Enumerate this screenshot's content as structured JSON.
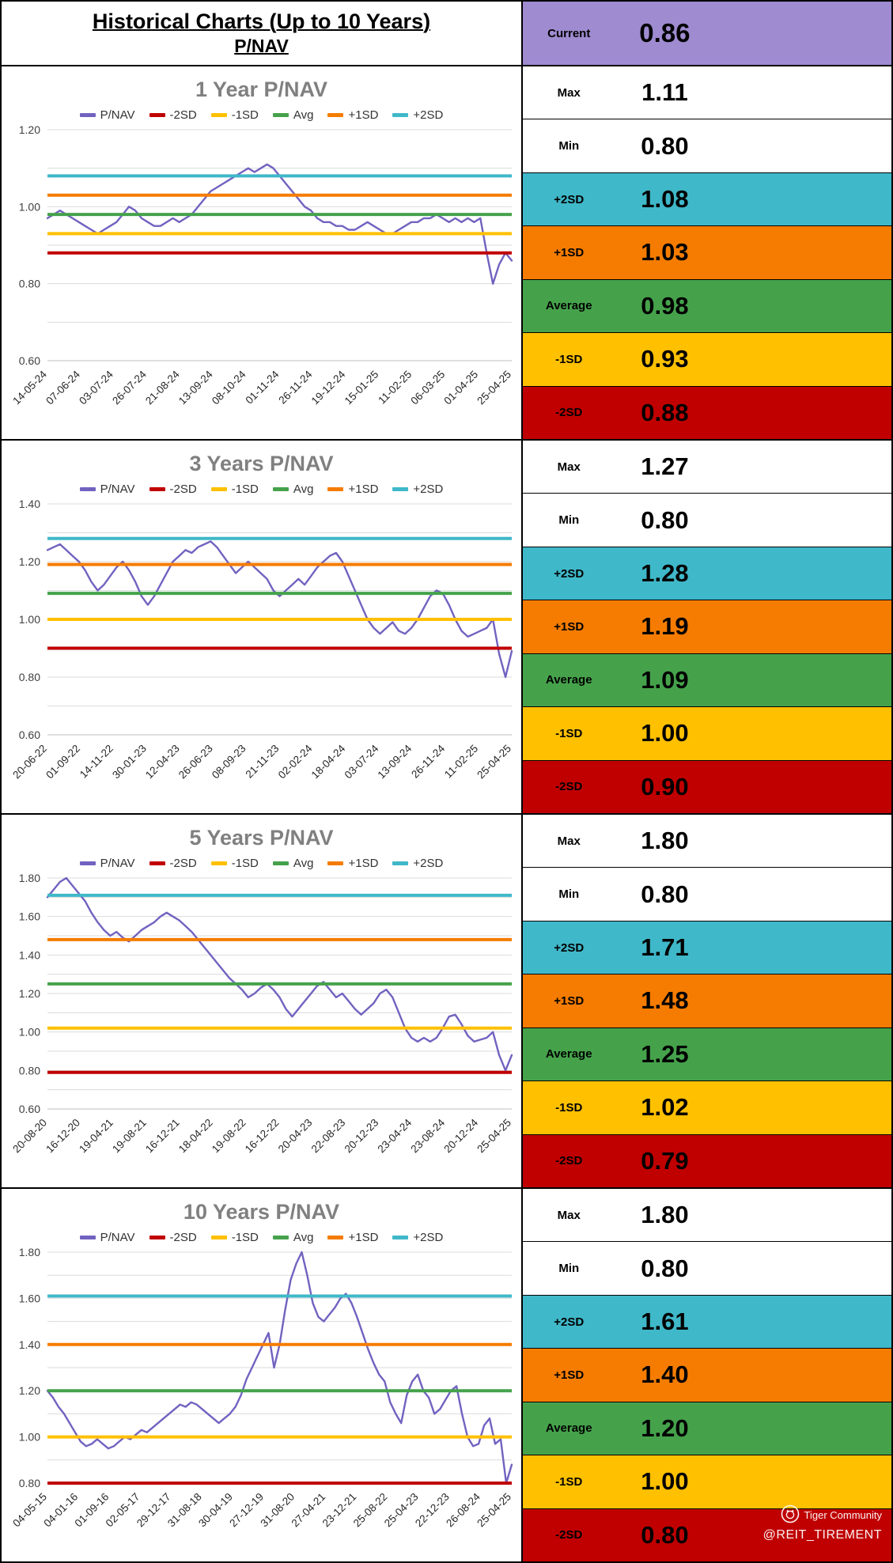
{
  "header": {
    "title_line1": "Historical Charts (Up to 10 Years)",
    "title_line2": "P/NAV",
    "current_label": "Current",
    "current_value": "0.86"
  },
  "colors": {
    "pnav": "#7262C0",
    "sd_minus2": "#C00000",
    "sd_minus1": "#FFC000",
    "avg": "#45A24B",
    "sd_plus1": "#F57C00",
    "sd_plus2": "#3FB8C9",
    "current_bg": "#9E8BD0",
    "grid": "#DBDBDB",
    "axis": "#BFBFBF",
    "title_grey": "#808080"
  },
  "legend": [
    {
      "label": "P/NAV",
      "color_key": "pnav"
    },
    {
      "label": "-2SD",
      "color_key": "sd_minus2"
    },
    {
      "label": "-1SD",
      "color_key": "sd_minus1"
    },
    {
      "label": "Avg",
      "color_key": "avg"
    },
    {
      "label": "+1SD",
      "color_key": "sd_plus1"
    },
    {
      "label": "+2SD",
      "color_key": "sd_plus2"
    }
  ],
  "watermark": {
    "brand": "Tiger Community",
    "handle": "@REIT_TIREMENT"
  },
  "chart_data": [
    {
      "id": "1y",
      "type": "line",
      "title": "1 Year P/NAV",
      "xlabel": "",
      "ylabel": "",
      "x_labels": [
        "14-05-24",
        "07-06-24",
        "03-07-24",
        "26-07-24",
        "21-08-24",
        "13-09-24",
        "08-10-24",
        "01-11-24",
        "26-11-24",
        "19-12-24",
        "15-01-25",
        "11-02-25",
        "06-03-25",
        "01-04-25",
        "25-04-25"
      ],
      "y_ticks": [
        0.6,
        0.8,
        1.0,
        1.2
      ],
      "ylim": [
        0.6,
        1.2
      ],
      "bands": {
        "plus2sd": 1.08,
        "plus1sd": 1.03,
        "avg": 0.98,
        "minus1sd": 0.93,
        "minus2sd": 0.88
      },
      "series": [
        {
          "name": "P/NAV",
          "values": [
            0.97,
            0.98,
            0.99,
            0.98,
            0.97,
            0.96,
            0.95,
            0.94,
            0.93,
            0.94,
            0.95,
            0.96,
            0.98,
            1.0,
            0.99,
            0.97,
            0.96,
            0.95,
            0.95,
            0.96,
            0.97,
            0.96,
            0.97,
            0.98,
            1.0,
            1.02,
            1.04,
            1.05,
            1.06,
            1.07,
            1.08,
            1.09,
            1.1,
            1.09,
            1.1,
            1.11,
            1.1,
            1.08,
            1.06,
            1.04,
            1.02,
            1.0,
            0.99,
            0.97,
            0.96,
            0.96,
            0.95,
            0.95,
            0.94,
            0.94,
            0.95,
            0.96,
            0.95,
            0.94,
            0.93,
            0.93,
            0.94,
            0.95,
            0.96,
            0.96,
            0.97,
            0.97,
            0.98,
            0.97,
            0.96,
            0.97,
            0.96,
            0.97,
            0.96,
            0.97,
            0.88,
            0.8,
            0.85,
            0.88,
            0.86
          ]
        }
      ],
      "stats": [
        {
          "key": "max",
          "label": "Max",
          "value": "1.11",
          "bg": "white"
        },
        {
          "key": "min",
          "label": "Min",
          "value": "0.80",
          "bg": "white"
        },
        {
          "key": "plus2sd",
          "label": "+2SD",
          "value": "1.08",
          "bg": "sd_plus2"
        },
        {
          "key": "plus1sd",
          "label": "+1SD",
          "value": "1.03",
          "bg": "sd_plus1"
        },
        {
          "key": "average",
          "label": "Average",
          "value": "0.98",
          "bg": "avg"
        },
        {
          "key": "minus1sd",
          "label": "-1SD",
          "value": "0.93",
          "bg": "sd_minus1"
        },
        {
          "key": "minus2sd",
          "label": "-2SD",
          "value": "0.88",
          "bg": "sd_minus2"
        }
      ]
    },
    {
      "id": "3y",
      "type": "line",
      "title": "3 Years P/NAV",
      "xlabel": "",
      "ylabel": "",
      "x_labels": [
        "20-06-22",
        "01-09-22",
        "14-11-22",
        "30-01-23",
        "12-04-23",
        "26-06-23",
        "08-09-23",
        "21-11-23",
        "02-02-24",
        "18-04-24",
        "03-07-24",
        "13-09-24",
        "26-11-24",
        "11-02-25",
        "25-04-25"
      ],
      "y_ticks": [
        0.6,
        0.8,
        1.0,
        1.2,
        1.4
      ],
      "ylim": [
        0.6,
        1.4
      ],
      "bands": {
        "plus2sd": 1.28,
        "plus1sd": 1.19,
        "avg": 1.09,
        "minus1sd": 1.0,
        "minus2sd": 0.9
      },
      "series": [
        {
          "name": "P/NAV",
          "values": [
            1.24,
            1.25,
            1.26,
            1.24,
            1.22,
            1.2,
            1.17,
            1.13,
            1.1,
            1.12,
            1.15,
            1.18,
            1.2,
            1.17,
            1.13,
            1.08,
            1.05,
            1.08,
            1.12,
            1.16,
            1.2,
            1.22,
            1.24,
            1.23,
            1.25,
            1.26,
            1.27,
            1.25,
            1.22,
            1.19,
            1.16,
            1.18,
            1.2,
            1.18,
            1.16,
            1.14,
            1.1,
            1.08,
            1.1,
            1.12,
            1.14,
            1.12,
            1.15,
            1.18,
            1.2,
            1.22,
            1.23,
            1.2,
            1.15,
            1.1,
            1.05,
            1.0,
            0.97,
            0.95,
            0.97,
            0.99,
            0.96,
            0.95,
            0.97,
            1.0,
            1.04,
            1.08,
            1.1,
            1.09,
            1.05,
            1.0,
            0.96,
            0.94,
            0.95,
            0.96,
            0.97,
            1.0,
            0.88,
            0.8,
            0.89
          ]
        }
      ],
      "stats": [
        {
          "key": "max",
          "label": "Max",
          "value": "1.27",
          "bg": "white"
        },
        {
          "key": "min",
          "label": "Min",
          "value": "0.80",
          "bg": "white"
        },
        {
          "key": "plus2sd",
          "label": "+2SD",
          "value": "1.28",
          "bg": "sd_plus2"
        },
        {
          "key": "plus1sd",
          "label": "+1SD",
          "value": "1.19",
          "bg": "sd_plus1"
        },
        {
          "key": "average",
          "label": "Average",
          "value": "1.09",
          "bg": "avg"
        },
        {
          "key": "minus1sd",
          "label": "-1SD",
          "value": "1.00",
          "bg": "sd_minus1"
        },
        {
          "key": "minus2sd",
          "label": "-2SD",
          "value": "0.90",
          "bg": "sd_minus2"
        }
      ]
    },
    {
      "id": "5y",
      "type": "line",
      "title": "5 Years P/NAV",
      "xlabel": "",
      "ylabel": "",
      "x_labels": [
        "20-08-20",
        "16-12-20",
        "19-04-21",
        "19-08-21",
        "16-12-21",
        "18-04-22",
        "19-08-22",
        "16-12-22",
        "20-04-23",
        "22-08-23",
        "20-12-23",
        "23-04-24",
        "23-08-24",
        "20-12-24",
        "25-04-25"
      ],
      "y_ticks": [
        0.6,
        0.8,
        1.0,
        1.2,
        1.4,
        1.6,
        1.8
      ],
      "ylim": [
        0.6,
        1.8
      ],
      "bands": {
        "plus2sd": 1.71,
        "plus1sd": 1.48,
        "avg": 1.25,
        "minus1sd": 1.02,
        "minus2sd": 0.79
      },
      "series": [
        {
          "name": "P/NAV",
          "values": [
            1.7,
            1.74,
            1.78,
            1.8,
            1.76,
            1.72,
            1.68,
            1.62,
            1.57,
            1.53,
            1.5,
            1.52,
            1.49,
            1.47,
            1.5,
            1.53,
            1.55,
            1.57,
            1.6,
            1.62,
            1.6,
            1.58,
            1.55,
            1.52,
            1.48,
            1.44,
            1.4,
            1.36,
            1.32,
            1.28,
            1.25,
            1.22,
            1.18,
            1.2,
            1.23,
            1.25,
            1.22,
            1.18,
            1.12,
            1.08,
            1.12,
            1.16,
            1.2,
            1.24,
            1.26,
            1.22,
            1.18,
            1.2,
            1.16,
            1.12,
            1.09,
            1.12,
            1.15,
            1.2,
            1.22,
            1.18,
            1.1,
            1.02,
            0.97,
            0.95,
            0.97,
            0.95,
            0.97,
            1.02,
            1.08,
            1.09,
            1.04,
            0.98,
            0.95,
            0.96,
            0.97,
            1.0,
            0.88,
            0.8,
            0.88
          ]
        }
      ],
      "stats": [
        {
          "key": "max",
          "label": "Max",
          "value": "1.80",
          "bg": "white"
        },
        {
          "key": "min",
          "label": "Min",
          "value": "0.80",
          "bg": "white"
        },
        {
          "key": "plus2sd",
          "label": "+2SD",
          "value": "1.71",
          "bg": "sd_plus2"
        },
        {
          "key": "plus1sd",
          "label": "+1SD",
          "value": "1.48",
          "bg": "sd_plus1"
        },
        {
          "key": "average",
          "label": "Average",
          "value": "1.25",
          "bg": "avg"
        },
        {
          "key": "minus1sd",
          "label": "-1SD",
          "value": "1.02",
          "bg": "sd_minus1"
        },
        {
          "key": "minus2sd",
          "label": "-2SD",
          "value": "0.79",
          "bg": "sd_minus2"
        }
      ]
    },
    {
      "id": "10y",
      "type": "line",
      "title": "10 Years P/NAV",
      "xlabel": "",
      "ylabel": "",
      "x_labels": [
        "04-05-15",
        "04-01-16",
        "01-09-16",
        "02-05-17",
        "29-12-17",
        "31-08-18",
        "30-04-19",
        "27-12-19",
        "31-08-20",
        "27-04-21",
        "23-12-21",
        "25-08-22",
        "25-04-23",
        "22-12-23",
        "26-08-24",
        "25-04-25"
      ],
      "y_ticks": [
        0.8,
        1.0,
        1.2,
        1.4,
        1.6,
        1.8
      ],
      "ylim": [
        0.8,
        1.8
      ],
      "bands": {
        "plus2sd": 1.61,
        "plus1sd": 1.4,
        "avg": 1.2,
        "minus1sd": 1.0,
        "minus2sd": 0.8
      },
      "series": [
        {
          "name": "P/NAV",
          "values": [
            1.2,
            1.17,
            1.13,
            1.1,
            1.06,
            1.02,
            0.98,
            0.96,
            0.97,
            0.99,
            0.97,
            0.95,
            0.96,
            0.98,
            1.0,
            0.99,
            1.01,
            1.03,
            1.02,
            1.04,
            1.06,
            1.08,
            1.1,
            1.12,
            1.14,
            1.13,
            1.15,
            1.14,
            1.12,
            1.1,
            1.08,
            1.06,
            1.08,
            1.1,
            1.13,
            1.18,
            1.25,
            1.3,
            1.35,
            1.4,
            1.45,
            1.3,
            1.4,
            1.55,
            1.68,
            1.75,
            1.8,
            1.7,
            1.58,
            1.52,
            1.5,
            1.53,
            1.56,
            1.6,
            1.62,
            1.58,
            1.52,
            1.45,
            1.38,
            1.32,
            1.27,
            1.24,
            1.15,
            1.1,
            1.06,
            1.18,
            1.24,
            1.27,
            1.2,
            1.17,
            1.1,
            1.12,
            1.16,
            1.2,
            1.22,
            1.1,
            1.0,
            0.96,
            0.97,
            1.05,
            1.08,
            0.97,
            0.99,
            0.8,
            0.88
          ]
        }
      ],
      "stats": [
        {
          "key": "max",
          "label": "Max",
          "value": "1.80",
          "bg": "white"
        },
        {
          "key": "min",
          "label": "Min",
          "value": "0.80",
          "bg": "white"
        },
        {
          "key": "plus2sd",
          "label": "+2SD",
          "value": "1.61",
          "bg": "sd_plus2"
        },
        {
          "key": "plus1sd",
          "label": "+1SD",
          "value": "1.40",
          "bg": "sd_plus1"
        },
        {
          "key": "average",
          "label": "Average",
          "value": "1.20",
          "bg": "avg"
        },
        {
          "key": "minus1sd",
          "label": "-1SD",
          "value": "1.00",
          "bg": "sd_minus1"
        },
        {
          "key": "minus2sd",
          "label": "-2SD",
          "value": "0.80",
          "bg": "sd_minus2"
        }
      ]
    }
  ]
}
